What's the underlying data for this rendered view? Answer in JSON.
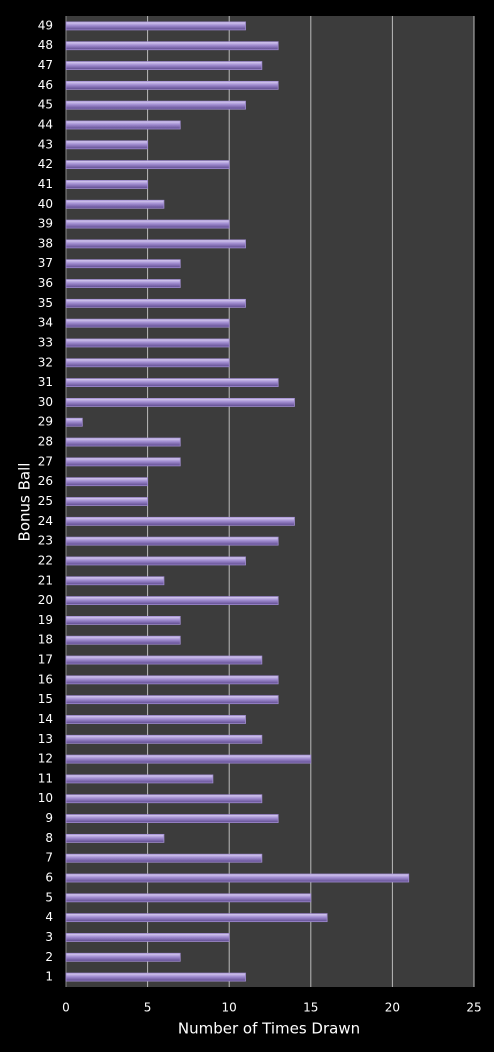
{
  "chart_data": {
    "type": "bar",
    "orientation": "horizontal",
    "x_label": "Number of Times Drawn",
    "y_label": "Bonus Ball",
    "categories": [
      "1",
      "2",
      "3",
      "4",
      "5",
      "6",
      "7",
      "8",
      "9",
      "10",
      "11",
      "12",
      "13",
      "14",
      "15",
      "16",
      "17",
      "18",
      "19",
      "20",
      "21",
      "22",
      "23",
      "24",
      "25",
      "26",
      "27",
      "28",
      "29",
      "30",
      "31",
      "32",
      "33",
      "34",
      "35",
      "36",
      "37",
      "38",
      "39",
      "40",
      "41",
      "42",
      "43",
      "44",
      "45",
      "46",
      "47",
      "48",
      "49"
    ],
    "values": [
      11,
      7,
      10,
      16,
      15,
      21,
      12,
      6,
      13,
      12,
      9,
      15,
      12,
      11,
      13,
      13,
      12,
      7,
      7,
      13,
      6,
      11,
      13,
      14,
      5,
      5,
      7,
      7,
      1,
      14,
      13,
      10,
      10,
      10,
      11,
      7,
      7,
      11,
      10,
      6,
      5,
      10,
      5,
      7,
      11,
      13,
      12,
      13,
      11
    ],
    "color": "#a08cd0",
    "xlim": [
      0,
      25
    ],
    "xticks": [
      0,
      5,
      10,
      15,
      20,
      25
    ],
    "grid": true
  }
}
